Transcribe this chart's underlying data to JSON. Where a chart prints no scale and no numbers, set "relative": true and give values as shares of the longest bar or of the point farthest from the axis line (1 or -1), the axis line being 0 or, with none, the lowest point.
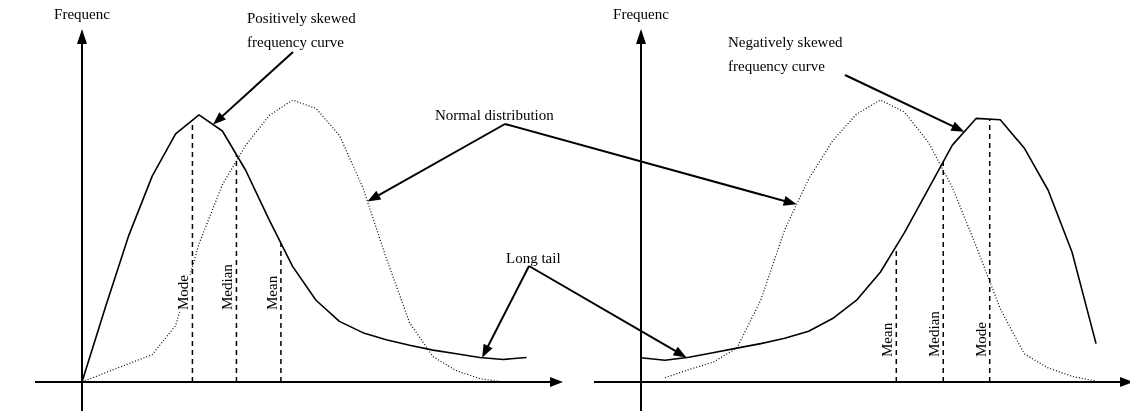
{
  "chart_data": [
    {
      "type": "line",
      "ylabel": "Frequenc",
      "relative": true,
      "marker": "none",
      "legend": false,
      "categories": [
        null,
        null,
        null,
        null,
        null,
        null,
        null,
        null,
        null,
        null,
        null,
        null,
        null,
        null,
        null,
        null,
        null,
        null,
        null,
        null,
        null
      ],
      "series": [
        {
          "color": "#000000",
          "line_style": "solid",
          "values": [
            0,
            0.265,
            0.52,
            0.73,
            0.88,
            0.947,
            0.89,
            0.75,
            0.575,
            0.41,
            0.29,
            0.215,
            0.175,
            0.15,
            0.13,
            0.113,
            0.1,
            0.087,
            0.08,
            0.087,
            null
          ]
        },
        {
          "color": "#000000",
          "line_style": "dotted",
          "values": [
            0,
            0.033,
            0.065,
            0.097,
            0.2,
            0.49,
            0.7,
            0.84,
            0.945,
            1,
            0.97,
            0.875,
            0.69,
            0.44,
            0.21,
            0.09,
            0.04,
            0.012,
            0,
            null,
            null
          ]
        }
      ],
      "annotations": [
        "Positively skewed frequency curve",
        "Normal distribution",
        "Long tail",
        "Mode",
        "Median",
        "Mean"
      ]
    },
    {
      "type": "line",
      "ylabel": "Frequenc",
      "relative": true,
      "marker": "none",
      "legend": false,
      "categories": [
        null,
        null,
        null,
        null,
        null,
        null,
        null,
        null,
        null,
        null,
        null,
        null,
        null,
        null,
        null,
        null,
        null,
        null,
        null,
        null,
        null
      ],
      "series": [
        {
          "color": "#000000",
          "line_style": "solid",
          "values": [
            0.086,
            0.077,
            0.088,
            0.104,
            0.12,
            0.136,
            0.155,
            0.18,
            0.225,
            0.29,
            0.39,
            0.53,
            0.685,
            0.84,
            0.935,
            0.93,
            0.83,
            0.68,
            0.46,
            0.136,
            null
          ]
        },
        {
          "color": "#000000",
          "line_style": "dotted",
          "values": [
            null,
            0.015,
            0.044,
            0.07,
            0.12,
            0.29,
            0.54,
            0.72,
            0.855,
            0.95,
            1,
            0.957,
            0.85,
            0.69,
            0.48,
            0.26,
            0.1,
            0.05,
            0.02,
            0.003,
            null
          ]
        }
      ],
      "annotations": [
        "Negatively skewed frequency curve",
        "Mean",
        "Median",
        "Mode"
      ]
    }
  ]
}
